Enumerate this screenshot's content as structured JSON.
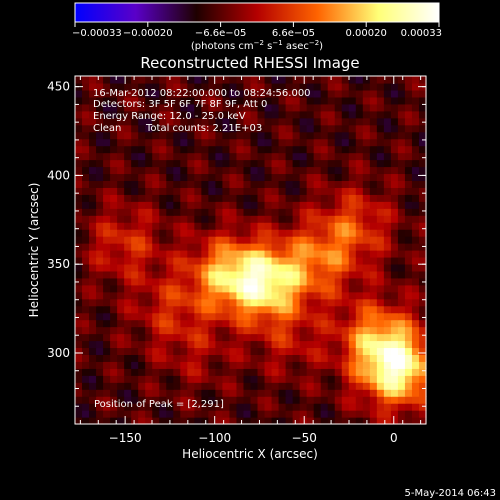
{
  "chart_data": {
    "type": "heatmap",
    "title": "Reconstructed RHESSI Image",
    "xlabel": "Heliocentric X (arcsec)",
    "ylabel": "Heliocentric Y (arcsec)",
    "xlim": [
      -178,
      18
    ],
    "ylim": [
      260,
      456
    ],
    "x_ticks": [
      -150,
      -100,
      -50,
      0
    ],
    "y_ticks": [
      300,
      350,
      400,
      450
    ],
    "x_tick_labels": [
      "−150",
      "−100",
      "−50",
      "0"
    ],
    "y_tick_labels": [
      "300",
      "350",
      "400",
      "450"
    ],
    "colorbar": {
      "range": [
        -0.00033,
        0.00033
      ],
      "tick_labels": [
        "−0.00033",
        "−0.00020",
        "−6.6e−05",
        "6.6e−05",
        "0.00020",
        "0.00033"
      ],
      "unit_prefix": "(photons cm",
      "unit_exp1": "−2",
      "unit_mid": " s",
      "unit_exp2": "−1",
      "unit_mid2": " asec",
      "unit_exp3": "−2",
      "unit_suffix": ")",
      "colors": [
        "#0000ff",
        "#5a00c8",
        "#1e0000",
        "#b40000",
        "#ff6400",
        "#ffff78",
        "#ffffff"
      ]
    },
    "annotations": {
      "time_range": "16-Mar-2012 08:22:00.000 to 08:24:56.000",
      "detectors": "Detectors: 3F 5F 6F 7F 8F 9F, Att 0",
      "energy_range": "Energy Range: 12.0 - 25.0 keV",
      "clean_label": "Clean",
      "total_counts": "Total counts: 2.21E+03",
      "peak_position": "Position of Peak = [2,291]"
    },
    "sources": [
      {
        "x": -95,
        "y": 345,
        "amp": 0.0002
      },
      {
        "x": -72,
        "y": 340,
        "amp": 0.0003
      },
      {
        "x": -150,
        "y": 362,
        "amp": 0.00012
      },
      {
        "x": -125,
        "y": 325,
        "amp": 0.0001
      },
      {
        "x": -42,
        "y": 352,
        "amp": 0.00016
      },
      {
        "x": -22,
        "y": 372,
        "amp": 0.00014
      },
      {
        "x": -10,
        "y": 310,
        "amp": 0.00018
      },
      {
        "x": 2,
        "y": 291,
        "amp": 0.00033
      },
      {
        "x": -58,
        "y": 308,
        "amp": 8e-05
      },
      {
        "x": -110,
        "y": 300,
        "amp": 6e-05
      }
    ]
  },
  "footer": {
    "date": "5-May-2014 06:43"
  }
}
